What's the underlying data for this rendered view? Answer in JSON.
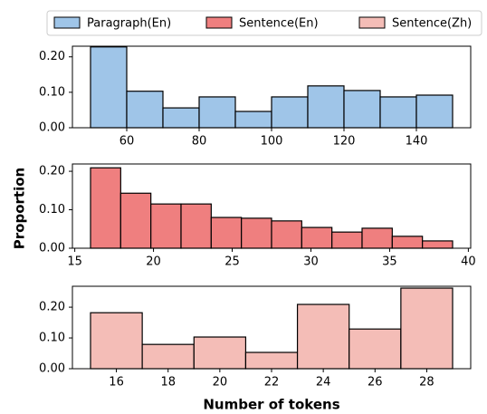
{
  "ylabel": "Proportion",
  "xlabel": "Number of tokens",
  "chart_data": [
    {
      "type": "histogram",
      "series": [
        {
          "name": "Paragraph(En)",
          "color": "#9fc5e8"
        }
      ],
      "bins": [
        50,
        60,
        70,
        80,
        90,
        100,
        110,
        120,
        130,
        140,
        150
      ],
      "values": [
        0.228,
        0.103,
        0.056,
        0.087,
        0.046,
        0.087,
        0.118,
        0.105,
        0.087,
        0.092
      ],
      "xlim": [
        45,
        155
      ],
      "xticks": [
        60,
        80,
        100,
        120,
        140
      ],
      "ylim": [
        0,
        0.23
      ],
      "yticks": [
        {
          "value": 0,
          "label": "0.00"
        },
        {
          "value": 0.1,
          "label": "0.10"
        },
        {
          "value": 0.2,
          "label": "0.20"
        }
      ]
    },
    {
      "type": "histogram",
      "series": [
        {
          "name": "Sentence(En)",
          "color": "#ef7f7f"
        }
      ],
      "bins": [
        16,
        17.9167,
        19.8333,
        21.75,
        23.6667,
        25.5833,
        27.5,
        29.4167,
        31.3333,
        33.25,
        35.1667,
        37.0833,
        39
      ],
      "values": [
        0.209,
        0.143,
        0.115,
        0.115,
        0.08,
        0.078,
        0.071,
        0.054,
        0.042,
        0.052,
        0.031,
        0.019
      ],
      "xlim": [
        14.85,
        40.15
      ],
      "xticks": [
        15,
        20,
        25,
        30,
        35,
        40
      ],
      "ylim": [
        0,
        0.219
      ],
      "yticks": [
        {
          "value": 0,
          "label": "0.00"
        },
        {
          "value": 0.1,
          "label": "0.10"
        },
        {
          "value": 0.2,
          "label": "0.20"
        }
      ]
    },
    {
      "type": "histogram",
      "series": [
        {
          "name": "Sentence(Zh)",
          "color": "#f4bdb7"
        }
      ],
      "bins": [
        15,
        17,
        19,
        21,
        23,
        25,
        27,
        29
      ],
      "values": [
        0.182,
        0.079,
        0.103,
        0.053,
        0.209,
        0.129,
        0.262
      ],
      "xlim": [
        14.3,
        29.7
      ],
      "xticks": [
        16,
        18,
        20,
        22,
        24,
        26,
        28
      ],
      "ylim": [
        0,
        0.268
      ],
      "yticks": [
        {
          "value": 0,
          "label": "0.00"
        },
        {
          "value": 0.1,
          "label": "0.10"
        },
        {
          "value": 0.2,
          "label": "0.20"
        }
      ]
    }
  ]
}
